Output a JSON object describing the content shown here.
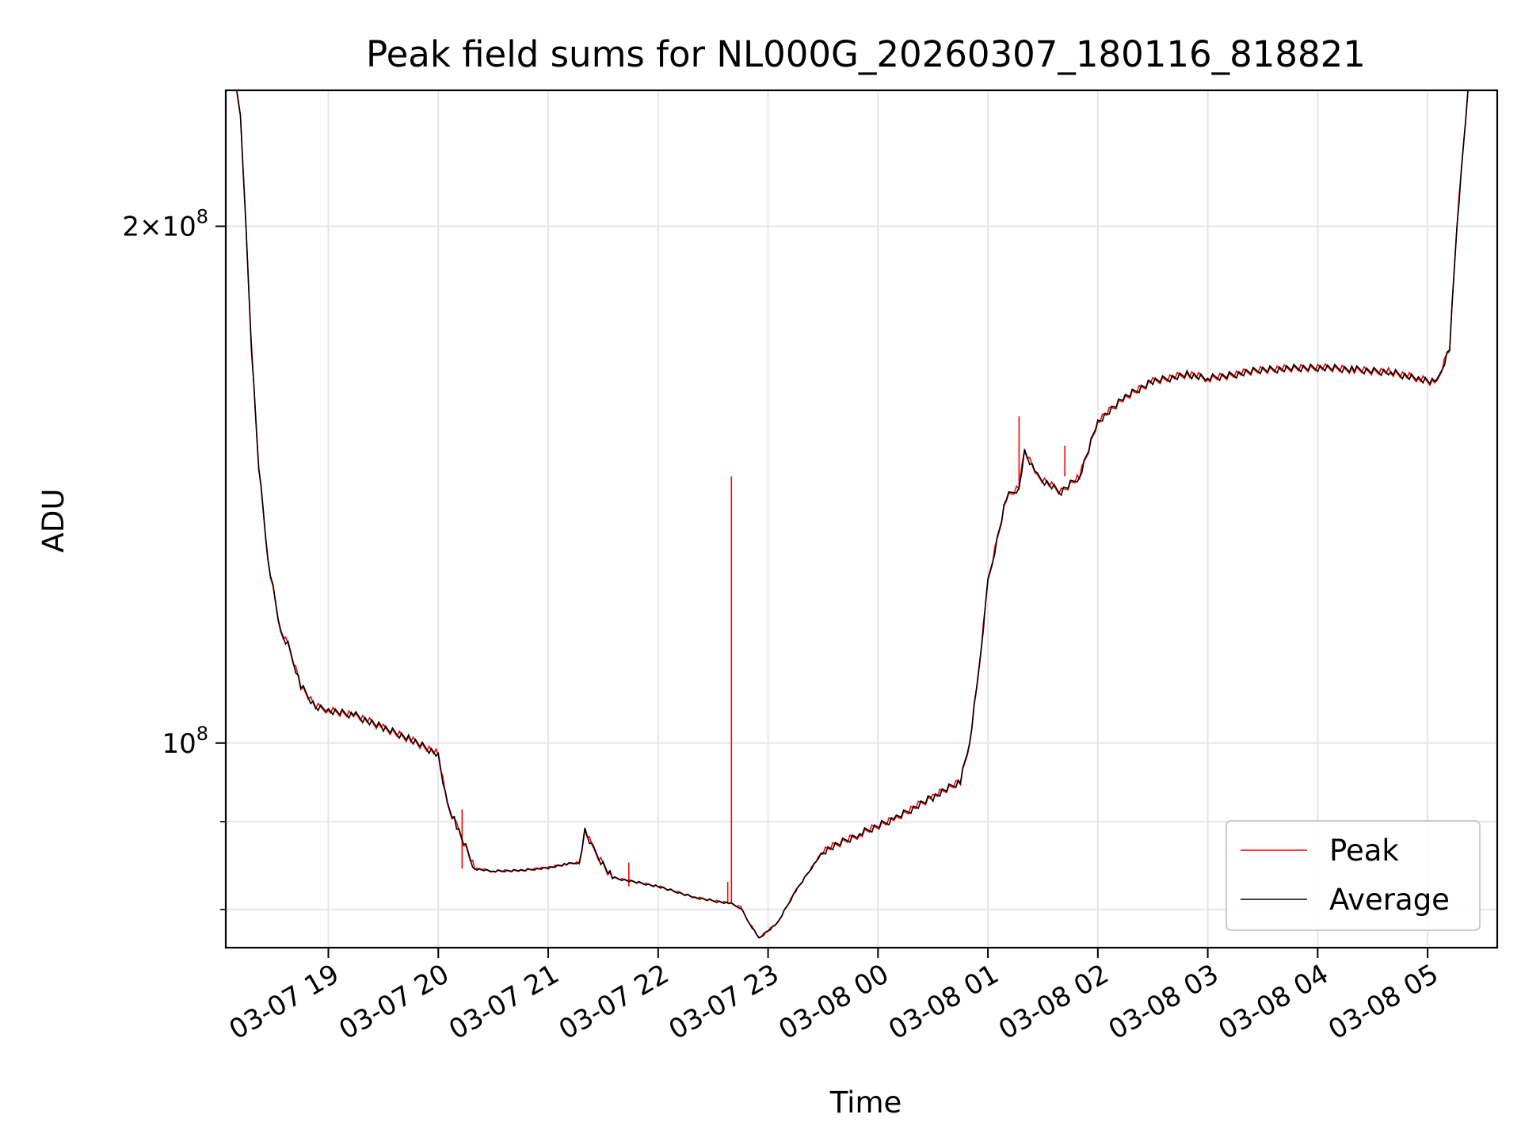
{
  "chart_data": {
    "type": "line",
    "title": "Peak field sums for NL000G_20260307_180116_818821",
    "xlabel": "Time",
    "ylabel": "ADU",
    "yscale": "log",
    "xlim": [
      "2026-03-07 18:04",
      "2026-03-08 05:38"
    ],
    "ylim": [
      76000000,
      240000000
    ],
    "grid": true,
    "legend_position": "lower right",
    "x_ticks": [
      "2026-03-07 19:00",
      "2026-03-07 20:00",
      "2026-03-07 21:00",
      "2026-03-07 22:00",
      "2026-03-07 23:00",
      "2026-03-08 00:00",
      "2026-03-08 01:00",
      "2026-03-08 02:00",
      "2026-03-08 03:00",
      "2026-03-08 04:00",
      "2026-03-08 05:00"
    ],
    "x_tick_labels": [
      "03-07 19",
      "03-07 20",
      "03-07 21",
      "03-07 22",
      "03-07 23",
      "03-08 00",
      "03-08 01",
      "03-08 02",
      "03-08 03",
      "03-08 04",
      "03-08 05"
    ],
    "y_major_ticks": [
      {
        "value": 100000000,
        "mantissa": "",
        "exponent": "8",
        "base": "10"
      },
      {
        "value": 200000000,
        "mantissa": "2",
        "exponent": "8",
        "base": "10"
      }
    ],
    "y_minor_ticks": [
      80000000,
      90000000
    ],
    "series": [
      {
        "name": "Peak",
        "color": "#ff0000"
      },
      {
        "name": "Average",
        "color": "#000000"
      }
    ],
    "x": [
      "2026-03-07 18:10",
      "2026-03-07 18:12",
      "2026-03-07 18:15",
      "2026-03-07 18:18",
      "2026-03-07 18:22",
      "2026-03-07 18:27",
      "2026-03-07 18:34",
      "2026-03-07 18:38",
      "2026-03-07 18:45",
      "2026-03-07 18:53",
      "2026-03-07 19:00",
      "2026-03-07 19:15",
      "2026-03-07 19:30",
      "2026-03-07 19:45",
      "2026-03-07 20:00",
      "2026-03-07 20:05",
      "2026-03-07 20:10",
      "2026-03-07 20:20",
      "2026-03-07 20:30",
      "2026-03-07 20:45",
      "2026-03-07 21:00",
      "2026-03-07 21:10",
      "2026-03-07 21:17",
      "2026-03-07 21:20",
      "2026-03-07 21:25",
      "2026-03-07 21:35",
      "2026-03-07 22:00",
      "2026-03-07 22:20",
      "2026-03-07 22:40",
      "2026-03-07 22:45",
      "2026-03-07 22:50",
      "2026-03-07 22:55",
      "2026-03-07 23:05",
      "2026-03-07 23:15",
      "2026-03-07 23:30",
      "2026-03-07 23:50",
      "2026-03-08 00:10",
      "2026-03-08 00:30",
      "2026-03-08 00:45",
      "2026-03-08 00:50",
      "2026-03-08 00:55",
      "2026-03-08 01:00",
      "2026-03-08 01:10",
      "2026-03-08 01:17",
      "2026-03-08 01:20",
      "2026-03-08 01:27",
      "2026-03-08 01:40",
      "2026-03-08 01:50",
      "2026-03-08 02:00",
      "2026-03-08 02:15",
      "2026-03-08 02:30",
      "2026-03-08 02:50",
      "2026-03-08 03:00",
      "2026-03-08 03:30",
      "2026-03-08 04:00",
      "2026-03-08 04:20",
      "2026-03-08 04:40",
      "2026-03-08 04:55",
      "2026-03-08 05:05",
      "2026-03-08 05:12",
      "2026-03-08 05:16",
      "2026-03-08 05:22"
    ],
    "values": [
      240000000,
      232000000,
      200000000,
      170000000,
      145000000,
      128000000,
      116000000,
      114000000,
      108000000,
      105000000,
      104500000,
      103800000,
      102000000,
      100500000,
      98500000,
      92000000,
      89500000,
      84500000,
      84200000,
      84300000,
      84600000,
      85000000,
      85200000,
      89000000,
      86500000,
      83500000,
      82500000,
      81300000,
      80600000,
      80200000,
      78500000,
      77000000,
      78500000,
      82000000,
      86500000,
      88500000,
      90500000,
      93000000,
      95000000,
      100000000,
      110000000,
      124000000,
      139000000,
      141000000,
      148000000,
      143000000,
      140000000,
      143000000,
      154000000,
      159000000,
      162500000,
      164000000,
      163000000,
      165000000,
      165500000,
      165000000,
      164500000,
      163000000,
      162000000,
      170000000,
      200000000,
      240000000
    ],
    "peak_spikes": [
      {
        "x": "2026-03-07 22:38",
        "y": 83000000
      },
      {
        "x": "2026-03-07 22:40",
        "y": 143000000
      },
      {
        "x": "2026-03-07 20:13",
        "y": 91500000
      },
      {
        "x": "2026-03-07 21:44",
        "y": 85200000
      },
      {
        "x": "2026-03-08 01:17",
        "y": 155000000
      },
      {
        "x": "2026-03-08 01:42",
        "y": 149000000
      }
    ]
  }
}
